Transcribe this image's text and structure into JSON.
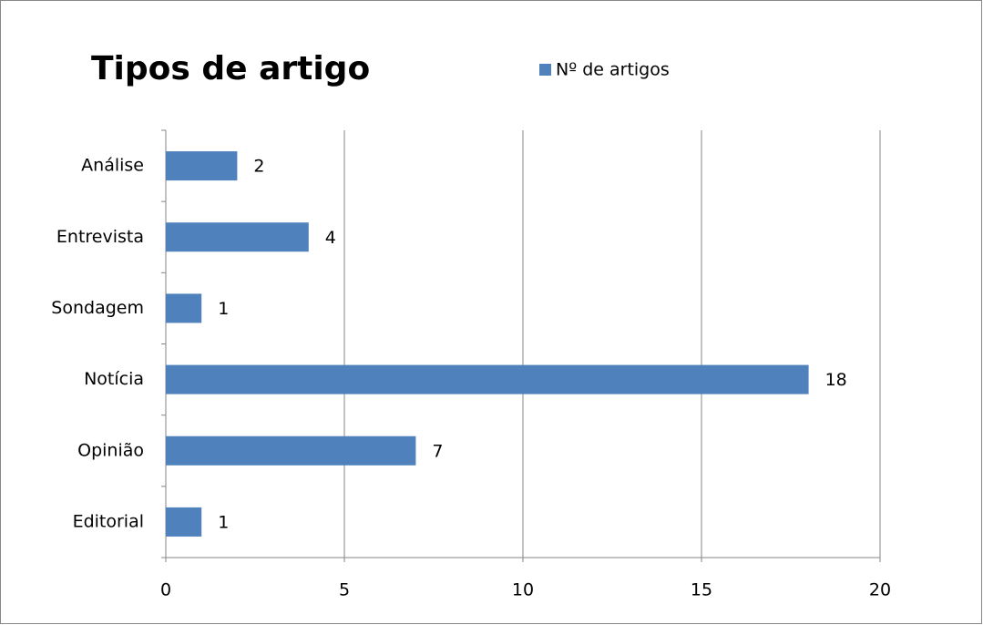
{
  "chart_data": {
    "type": "bar",
    "orientation": "horizontal",
    "title": "Tipos de artigo",
    "categories": [
      "Análise",
      "Entrevista",
      "Sondagem",
      "Notícia",
      "Opinião",
      "Editorial"
    ],
    "series": [
      {
        "name": "Nº de artigos",
        "color": "#4f81bd",
        "values": [
          2,
          4,
          1,
          18,
          7,
          1
        ]
      }
    ],
    "xlim": [
      0,
      20
    ],
    "xticks": [
      0,
      5,
      10,
      15,
      20
    ],
    "grid": true,
    "legend": "top"
  }
}
